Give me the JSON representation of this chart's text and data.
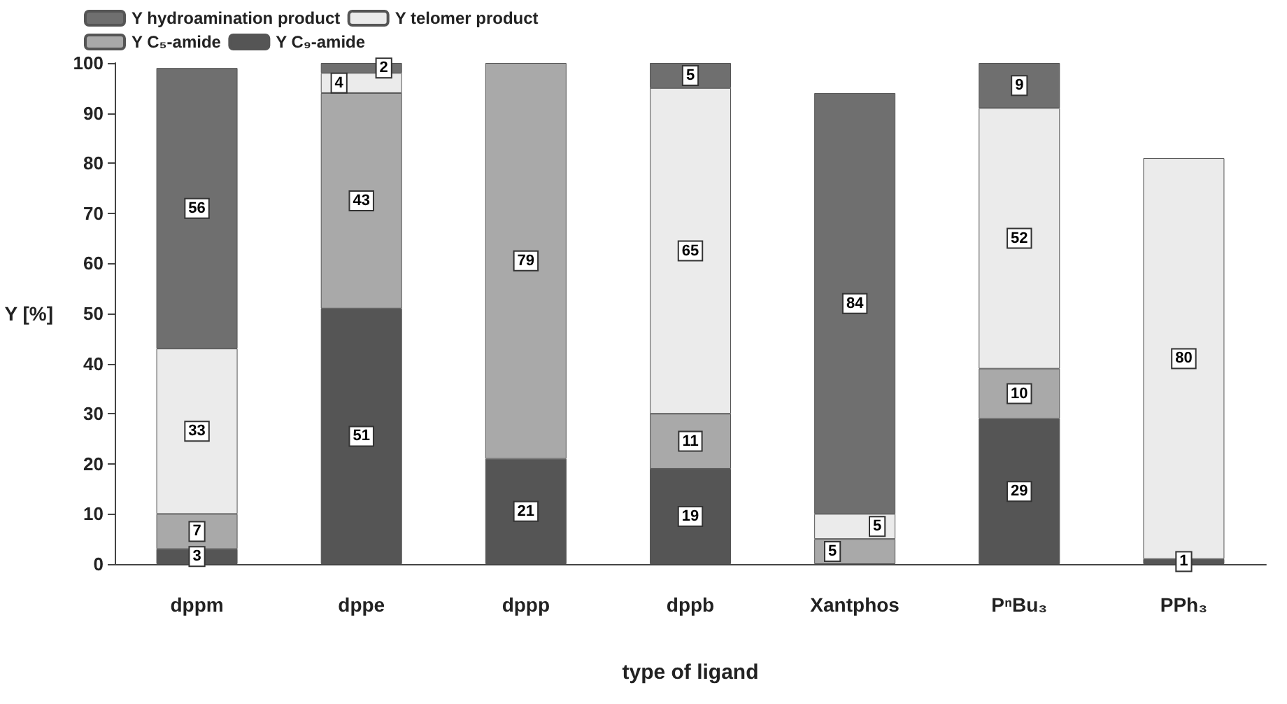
{
  "chart_data": {
    "type": "bar",
    "stacked": true,
    "xlabel": "type of ligand",
    "ylabel": "Y [%]",
    "categories": [
      "dppm",
      "dppe",
      "dppp",
      "dppb",
      "Xantphos",
      "PⁿBu₃",
      "PPh₃"
    ],
    "series": [
      {
        "name": "Y C₉-amide",
        "color": "#555555",
        "values": [
          3,
          51,
          21,
          19,
          null,
          29,
          1
        ]
      },
      {
        "name": "Y C₅-amide",
        "color": "#a9a9a9",
        "values": [
          7,
          43,
          79,
          11,
          5,
          10,
          null
        ]
      },
      {
        "name": "Y telomer product",
        "color": "#ebebeb",
        "values": [
          33,
          4,
          null,
          65,
          5,
          52,
          80
        ]
      },
      {
        "name": "Y hydroamination product",
        "color": "#6f6f6f",
        "values": [
          56,
          2,
          null,
          5,
          84,
          9,
          null
        ]
      }
    ],
    "ylim": [
      0,
      100
    ],
    "yticks": [
      0,
      10,
      20,
      30,
      40,
      50,
      60,
      70,
      80,
      90,
      100
    ],
    "grid": false,
    "legend": "top left",
    "data_labels": true
  }
}
